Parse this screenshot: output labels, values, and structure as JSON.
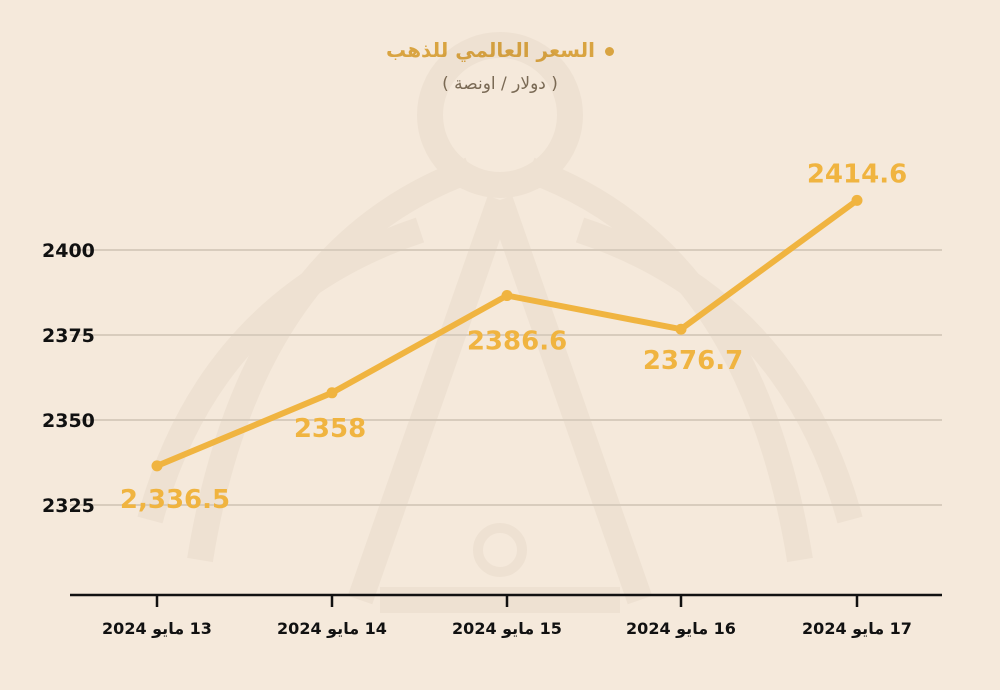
{
  "chart_data": {
    "type": "line",
    "legend_position": "top-center",
    "grid": true,
    "series": [
      {
        "name": "السعر العالمي للذهب",
        "color": "#f0b440",
        "values": [
          2336.5,
          2358,
          2386.6,
          2376.7,
          2414.6
        ],
        "data_labels": [
          "2,336.5",
          "2358",
          "2386.6",
          "2376.7",
          "2414.6"
        ]
      }
    ],
    "categories": [
      "13 مايو 2024",
      "14 مايو 2024",
      "15 مايو 2024",
      "16 مايو 2024",
      "17 مايو 2024"
    ],
    "unit_note": "( دولار / اونصة )",
    "yticks": [
      2325,
      2350,
      2375,
      2400
    ],
    "ylim": [
      2300,
      2420
    ]
  }
}
